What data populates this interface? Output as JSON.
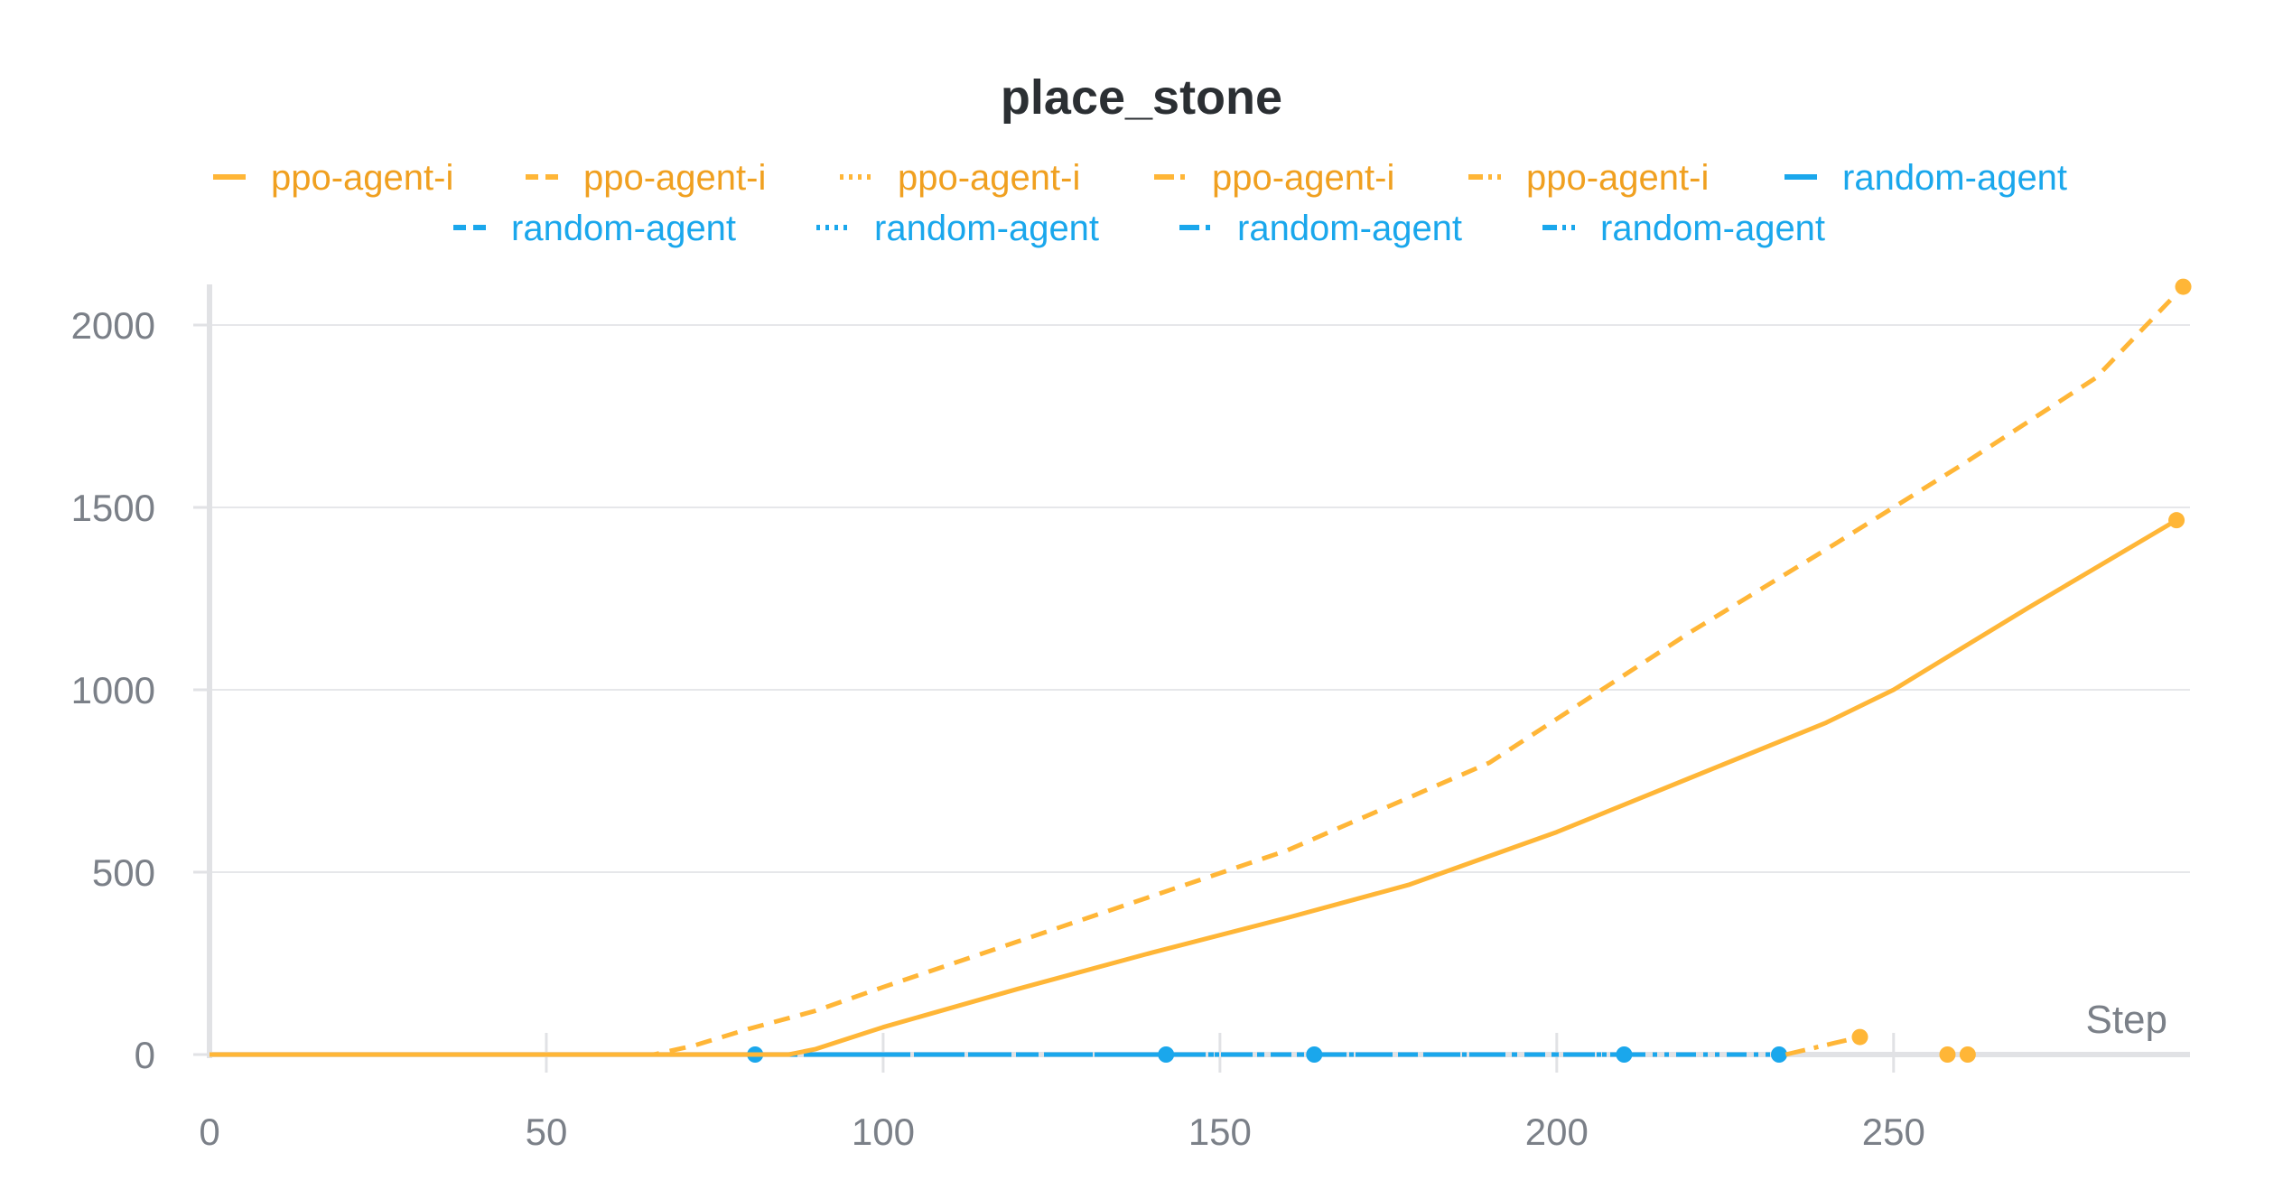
{
  "chart_data": {
    "type": "line",
    "title": "place_stone",
    "xlabel": "Step",
    "ylabel": "",
    "xlim": [
      0,
      294
    ],
    "ylim": [
      0,
      2100
    ],
    "xticks": [
      0,
      50,
      100,
      150,
      200,
      250
    ],
    "yticks": [
      0,
      500,
      1000,
      1500,
      2000
    ],
    "grid": true,
    "legend_position": "top",
    "colors": {
      "ppo": "#ffb637",
      "ppo_text": "#f0a020",
      "random": "#1aa7ec"
    },
    "series": [
      {
        "name": "ppo-agent-i",
        "group": "ppo",
        "dash": "solid",
        "points": [
          [
            0,
            0
          ],
          [
            86,
            0
          ],
          [
            90,
            15
          ],
          [
            100,
            75
          ],
          [
            120,
            180
          ],
          [
            140,
            280
          ],
          [
            160,
            375
          ],
          [
            178,
            465
          ],
          [
            200,
            610
          ],
          [
            220,
            760
          ],
          [
            240,
            910
          ],
          [
            250,
            1000
          ],
          [
            270,
            1225
          ],
          [
            292,
            1465
          ]
        ]
      },
      {
        "name": "ppo-agent-i",
        "group": "ppo",
        "dash": "dash",
        "points": [
          [
            0,
            0
          ],
          [
            66,
            0
          ],
          [
            72,
            25
          ],
          [
            80,
            70
          ],
          [
            90,
            120
          ],
          [
            100,
            185
          ],
          [
            120,
            310
          ],
          [
            140,
            435
          ],
          [
            160,
            560
          ],
          [
            180,
            720
          ],
          [
            190,
            800
          ],
          [
            200,
            920
          ],
          [
            220,
            1160
          ],
          [
            240,
            1385
          ],
          [
            260,
            1615
          ],
          [
            280,
            1855
          ],
          [
            293,
            2105
          ]
        ]
      },
      {
        "name": "ppo-agent-i",
        "group": "ppo",
        "dash": "dot",
        "points": [
          [
            258,
            0
          ]
        ]
      },
      {
        "name": "ppo-agent-i",
        "group": "ppo",
        "dash": "dashdot",
        "points": [
          [
            234,
            0
          ],
          [
            245,
            48
          ]
        ]
      },
      {
        "name": "ppo-agent-i",
        "group": "ppo",
        "dash": "dashdotdot",
        "points": [
          [
            261,
            0
          ]
        ]
      },
      {
        "name": "random-agent",
        "group": "random",
        "dash": "solid",
        "points": [
          [
            0,
            0
          ],
          [
            81,
            0
          ]
        ]
      },
      {
        "name": "random-agent",
        "group": "random",
        "dash": "dash",
        "points": [
          [
            0,
            0
          ],
          [
            142,
            0
          ]
        ]
      },
      {
        "name": "random-agent",
        "group": "random",
        "dash": "dot",
        "points": [
          [
            0,
            0
          ],
          [
            164,
            0
          ]
        ]
      },
      {
        "name": "random-agent",
        "group": "random",
        "dash": "dashdot",
        "points": [
          [
            0,
            0
          ],
          [
            210,
            0
          ]
        ]
      },
      {
        "name": "random-agent",
        "group": "random",
        "dash": "dashdotdot",
        "points": [
          [
            0,
            0
          ],
          [
            233,
            0
          ]
        ]
      }
    ]
  }
}
